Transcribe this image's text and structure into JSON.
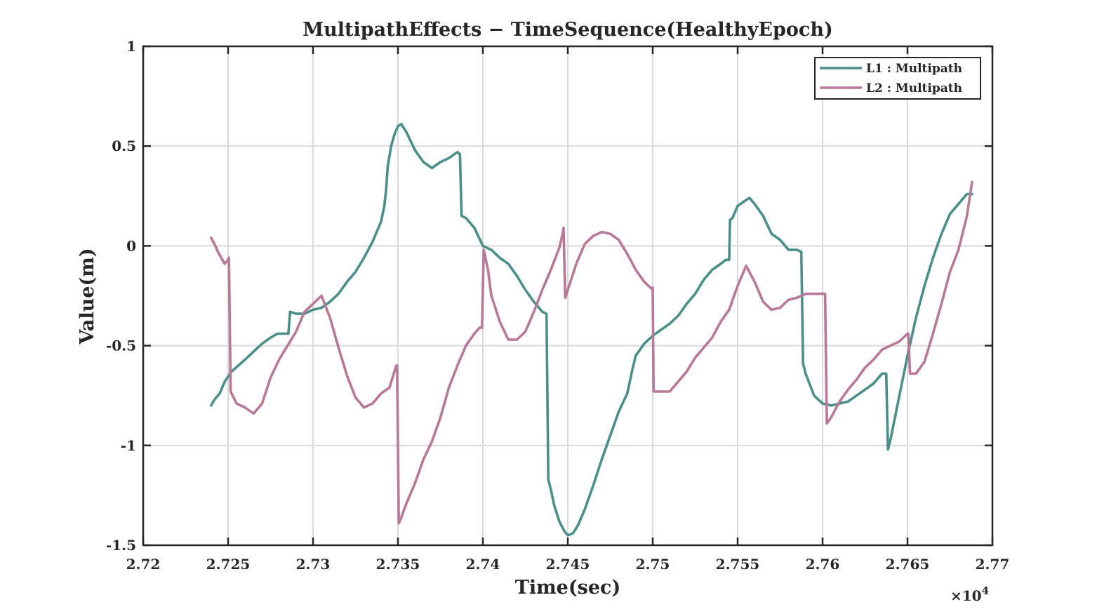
{
  "chart_data": {
    "type": "line",
    "title": "MultipathEffects − TimeSequence(HealthyEpoch)",
    "xlabel": "Time(sec)",
    "ylabel": "Value(m)",
    "x_exponent_label": "×10",
    "x_exponent_power": "4",
    "xlim": [
      2.72,
      2.77
    ],
    "ylim": [
      -1.5,
      1
    ],
    "xticks": [
      2.72,
      2.725,
      2.73,
      2.735,
      2.74,
      2.745,
      2.75,
      2.755,
      2.76,
      2.765,
      2.77
    ],
    "xtick_labels": [
      "2.72",
      "2.725",
      "2.73",
      "2.735",
      "2.74",
      "2.745",
      "2.75",
      "2.755",
      "2.76",
      "2.765",
      "2.77"
    ],
    "yticks": [
      1,
      0.5,
      0,
      -0.5,
      -1,
      -1.5
    ],
    "ytick_labels": [
      "1",
      "0.5",
      "0",
      "-0.5",
      "-1",
      "-1.5"
    ],
    "grid": true,
    "legend_position": "top-right",
    "series": [
      {
        "name": "L1 : Multipath",
        "color": "#4a8f88",
        "points": [
          [
            2.724,
            -0.8
          ],
          [
            2.7242,
            -0.77
          ],
          [
            2.7245,
            -0.74
          ],
          [
            2.7248,
            -0.68
          ],
          [
            2.7252,
            -0.63
          ],
          [
            2.7256,
            -0.6
          ],
          [
            2.726,
            -0.57
          ],
          [
            2.7265,
            -0.53
          ],
          [
            2.727,
            -0.49
          ],
          [
            2.7275,
            -0.46
          ],
          [
            2.7279,
            -0.44
          ],
          [
            2.72855,
            -0.44
          ],
          [
            2.72865,
            -0.33
          ],
          [
            2.729,
            -0.34
          ],
          [
            2.7295,
            -0.34
          ],
          [
            2.73,
            -0.32
          ],
          [
            2.7305,
            -0.31
          ],
          [
            2.731,
            -0.28
          ],
          [
            2.7315,
            -0.24
          ],
          [
            2.732,
            -0.18
          ],
          [
            2.7325,
            -0.13
          ],
          [
            2.733,
            -0.06
          ],
          [
            2.7335,
            0.02
          ],
          [
            2.734,
            0.12
          ],
          [
            2.7342,
            0.2
          ],
          [
            2.7343,
            0.28
          ],
          [
            2.7344,
            0.4
          ],
          [
            2.7346,
            0.5
          ],
          [
            2.7348,
            0.56
          ],
          [
            2.735,
            0.6
          ],
          [
            2.7352,
            0.61
          ],
          [
            2.7355,
            0.57
          ],
          [
            2.736,
            0.48
          ],
          [
            2.7365,
            0.42
          ],
          [
            2.737,
            0.39
          ],
          [
            2.7375,
            0.42
          ],
          [
            2.738,
            0.44
          ],
          [
            2.7385,
            0.47
          ],
          [
            2.73865,
            0.46
          ],
          [
            2.73875,
            0.15
          ],
          [
            2.739,
            0.14
          ],
          [
            2.7395,
            0.09
          ],
          [
            2.74,
            0.0
          ],
          [
            2.7405,
            -0.02
          ],
          [
            2.741,
            -0.06
          ],
          [
            2.7415,
            -0.09
          ],
          [
            2.742,
            -0.15
          ],
          [
            2.7425,
            -0.22
          ],
          [
            2.743,
            -0.28
          ],
          [
            2.7435,
            -0.33
          ],
          [
            2.74375,
            -0.34
          ],
          [
            2.74385,
            -1.17
          ],
          [
            2.744,
            -1.22
          ],
          [
            2.7442,
            -1.3
          ],
          [
            2.7445,
            -1.38
          ],
          [
            2.7448,
            -1.43
          ],
          [
            2.745,
            -1.45
          ],
          [
            2.7453,
            -1.44
          ],
          [
            2.7456,
            -1.4
          ],
          [
            2.746,
            -1.32
          ],
          [
            2.7465,
            -1.2
          ],
          [
            2.747,
            -1.07
          ],
          [
            2.7475,
            -0.95
          ],
          [
            2.748,
            -0.83
          ],
          [
            2.7485,
            -0.74
          ],
          [
            2.7488,
            -0.62
          ],
          [
            2.749,
            -0.55
          ],
          [
            2.7495,
            -0.49
          ],
          [
            2.75,
            -0.45
          ],
          [
            2.7505,
            -0.42
          ],
          [
            2.751,
            -0.39
          ],
          [
            2.7515,
            -0.35
          ],
          [
            2.752,
            -0.29
          ],
          [
            2.7525,
            -0.24
          ],
          [
            2.753,
            -0.17
          ],
          [
            2.7535,
            -0.12
          ],
          [
            2.754,
            -0.09
          ],
          [
            2.7543,
            -0.07
          ],
          [
            2.7545,
            -0.07
          ],
          [
            2.75455,
            0.13
          ],
          [
            2.7547,
            0.14
          ],
          [
            2.755,
            0.2
          ],
          [
            2.7555,
            0.23
          ],
          [
            2.7557,
            0.24
          ],
          [
            2.756,
            0.21
          ],
          [
            2.7565,
            0.15
          ],
          [
            2.757,
            0.06
          ],
          [
            2.7575,
            0.03
          ],
          [
            2.758,
            -0.02
          ],
          [
            2.7585,
            -0.02
          ],
          [
            2.75875,
            -0.03
          ],
          [
            2.75885,
            -0.59
          ],
          [
            2.759,
            -0.64
          ],
          [
            2.7595,
            -0.75
          ],
          [
            2.76,
            -0.79
          ],
          [
            2.7605,
            -0.8
          ],
          [
            2.761,
            -0.79
          ],
          [
            2.7615,
            -0.78
          ],
          [
            2.762,
            -0.75
          ],
          [
            2.7625,
            -0.72
          ],
          [
            2.763,
            -0.69
          ],
          [
            2.7635,
            -0.64
          ],
          [
            2.76375,
            -0.64
          ],
          [
            2.76385,
            -1.02
          ],
          [
            2.764,
            -0.97
          ],
          [
            2.7645,
            -0.76
          ],
          [
            2.765,
            -0.55
          ],
          [
            2.7655,
            -0.36
          ],
          [
            2.766,
            -0.2
          ],
          [
            2.7665,
            -0.06
          ],
          [
            2.767,
            0.06
          ],
          [
            2.7675,
            0.16
          ],
          [
            2.768,
            0.21
          ],
          [
            2.7685,
            0.26
          ],
          [
            2.7688,
            0.26
          ]
        ]
      },
      {
        "name": "L2 : Multipath",
        "color": "#b87897",
        "points": [
          [
            2.724,
            0.04
          ],
          [
            2.7242,
            0.01
          ],
          [
            2.7244,
            -0.03
          ],
          [
            2.7246,
            -0.06
          ],
          [
            2.7248,
            -0.09
          ],
          [
            2.725,
            -0.07
          ],
          [
            2.72505,
            -0.06
          ],
          [
            2.72515,
            -0.73
          ],
          [
            2.7255,
            -0.79
          ],
          [
            2.726,
            -0.81
          ],
          [
            2.7265,
            -0.84
          ],
          [
            2.727,
            -0.79
          ],
          [
            2.7275,
            -0.66
          ],
          [
            2.728,
            -0.57
          ],
          [
            2.7285,
            -0.5
          ],
          [
            2.729,
            -0.43
          ],
          [
            2.7295,
            -0.33
          ],
          [
            2.73,
            -0.29
          ],
          [
            2.7305,
            -0.25
          ],
          [
            2.731,
            -0.36
          ],
          [
            2.7315,
            -0.51
          ],
          [
            2.732,
            -0.65
          ],
          [
            2.7325,
            -0.76
          ],
          [
            2.733,
            -0.81
          ],
          [
            2.7335,
            -0.79
          ],
          [
            2.734,
            -0.74
          ],
          [
            2.7345,
            -0.71
          ],
          [
            2.7349,
            -0.6
          ],
          [
            2.73495,
            -0.6
          ],
          [
            2.73505,
            -1.39
          ],
          [
            2.7352,
            -1.36
          ],
          [
            2.7355,
            -1.29
          ],
          [
            2.736,
            -1.19
          ],
          [
            2.7365,
            -1.07
          ],
          [
            2.737,
            -0.98
          ],
          [
            2.7375,
            -0.86
          ],
          [
            2.738,
            -0.71
          ],
          [
            2.7385,
            -0.6
          ],
          [
            2.739,
            -0.5
          ],
          [
            2.7395,
            -0.44
          ],
          [
            2.7398,
            -0.41
          ],
          [
            2.73995,
            -0.41
          ],
          [
            2.74005,
            -0.02
          ],
          [
            2.7403,
            -0.12
          ],
          [
            2.7405,
            -0.25
          ],
          [
            2.741,
            -0.38
          ],
          [
            2.7415,
            -0.47
          ],
          [
            2.742,
            -0.47
          ],
          [
            2.7425,
            -0.43
          ],
          [
            2.743,
            -0.33
          ],
          [
            2.7435,
            -0.22
          ],
          [
            2.744,
            -0.12
          ],
          [
            2.7445,
            -0.01
          ],
          [
            2.7447,
            0.06
          ],
          [
            2.74475,
            0.09
          ],
          [
            2.74485,
            -0.26
          ],
          [
            2.745,
            -0.22
          ],
          [
            2.7455,
            -0.09
          ],
          [
            2.746,
            0.01
          ],
          [
            2.7465,
            0.05
          ],
          [
            2.747,
            0.07
          ],
          [
            2.7475,
            0.06
          ],
          [
            2.748,
            0.03
          ],
          [
            2.7485,
            -0.04
          ],
          [
            2.749,
            -0.12
          ],
          [
            2.7495,
            -0.18
          ],
          [
            2.75,
            -0.22
          ],
          [
            2.75,
            -0.21
          ],
          [
            2.75005,
            -0.73
          ],
          [
            2.7505,
            -0.73
          ],
          [
            2.751,
            -0.73
          ],
          [
            2.7515,
            -0.68
          ],
          [
            2.752,
            -0.63
          ],
          [
            2.7525,
            -0.56
          ],
          [
            2.753,
            -0.51
          ],
          [
            2.7535,
            -0.46
          ],
          [
            2.754,
            -0.38
          ],
          [
            2.7545,
            -0.32
          ],
          [
            2.755,
            -0.2
          ],
          [
            2.7555,
            -0.1
          ],
          [
            2.756,
            -0.18
          ],
          [
            2.7565,
            -0.28
          ],
          [
            2.757,
            -0.32
          ],
          [
            2.7575,
            -0.31
          ],
          [
            2.758,
            -0.27
          ],
          [
            2.7585,
            -0.26
          ],
          [
            2.759,
            -0.24
          ],
          [
            2.75935,
            -0.24
          ],
          [
            2.76015,
            -0.24
          ],
          [
            2.76025,
            -0.89
          ],
          [
            2.7605,
            -0.86
          ],
          [
            2.761,
            -0.78
          ],
          [
            2.7615,
            -0.72
          ],
          [
            2.762,
            -0.67
          ],
          [
            2.7625,
            -0.61
          ],
          [
            2.763,
            -0.57
          ],
          [
            2.7635,
            -0.52
          ],
          [
            2.764,
            -0.5
          ],
          [
            2.7645,
            -0.48
          ],
          [
            2.765,
            -0.44
          ],
          [
            2.76505,
            -0.44
          ],
          [
            2.76515,
            -0.64
          ],
          [
            2.7655,
            -0.64
          ],
          [
            2.766,
            -0.58
          ],
          [
            2.7665,
            -0.44
          ],
          [
            2.767,
            -0.29
          ],
          [
            2.7675,
            -0.13
          ],
          [
            2.768,
            -0.02
          ],
          [
            2.7685,
            0.15
          ],
          [
            2.7688,
            0.32
          ]
        ]
      }
    ]
  }
}
